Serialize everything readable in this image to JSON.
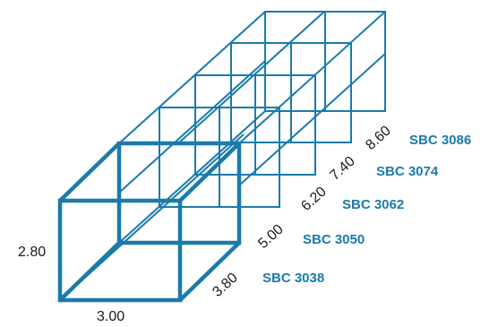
{
  "colors": {
    "line": "#1a7aab",
    "text": "#1a1a1a",
    "model": "#1a7aab"
  },
  "dimensions": {
    "height": "2.80",
    "width": "3.00",
    "lengths": [
      "3.80",
      "5.00",
      "6.20",
      "7.40",
      "8.60"
    ]
  },
  "models": [
    "SBC 3038",
    "SBC 3050",
    "SBC 3062",
    "SBC 3074",
    "SBC 3086"
  ]
}
